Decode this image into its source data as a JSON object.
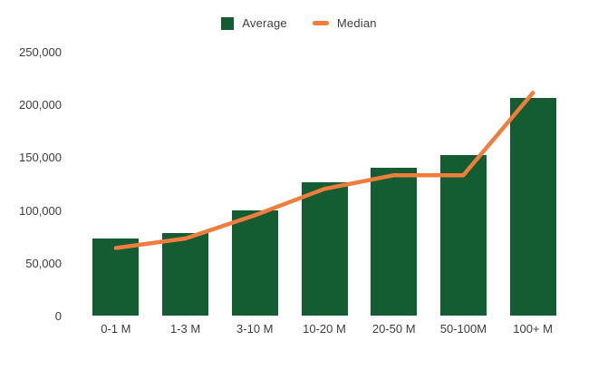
{
  "chart_data": {
    "type": "bar",
    "subtype": "combo-bar-line",
    "title": "",
    "xlabel": "",
    "ylabel": "",
    "categories": [
      "0-1 M",
      "1-3 M",
      "3-10 M",
      "10-20 M",
      "20-50 M",
      "50-100M",
      "100+ M"
    ],
    "series": [
      {
        "name": "Average",
        "type": "bar",
        "color": "#145c32",
        "values": [
          73000,
          78000,
          100000,
          126000,
          140000,
          152000,
          206000
        ]
      },
      {
        "name": "Median",
        "type": "line",
        "color": "#f07d3c",
        "values": [
          64000,
          73000,
          95000,
          120000,
          133000,
          133000,
          211000
        ]
      }
    ],
    "ylim": [
      0,
      250000
    ],
    "ytick_step": 50000,
    "ytick_labels_top_to_bottom": [
      "250,000",
      "200,000",
      "150,000",
      "100,000",
      "50,000",
      "0"
    ],
    "grid": false,
    "axis_lines": false,
    "legend_position": "top-center",
    "text_color": "#3d3d3d",
    "background_color": "#ffffff"
  }
}
